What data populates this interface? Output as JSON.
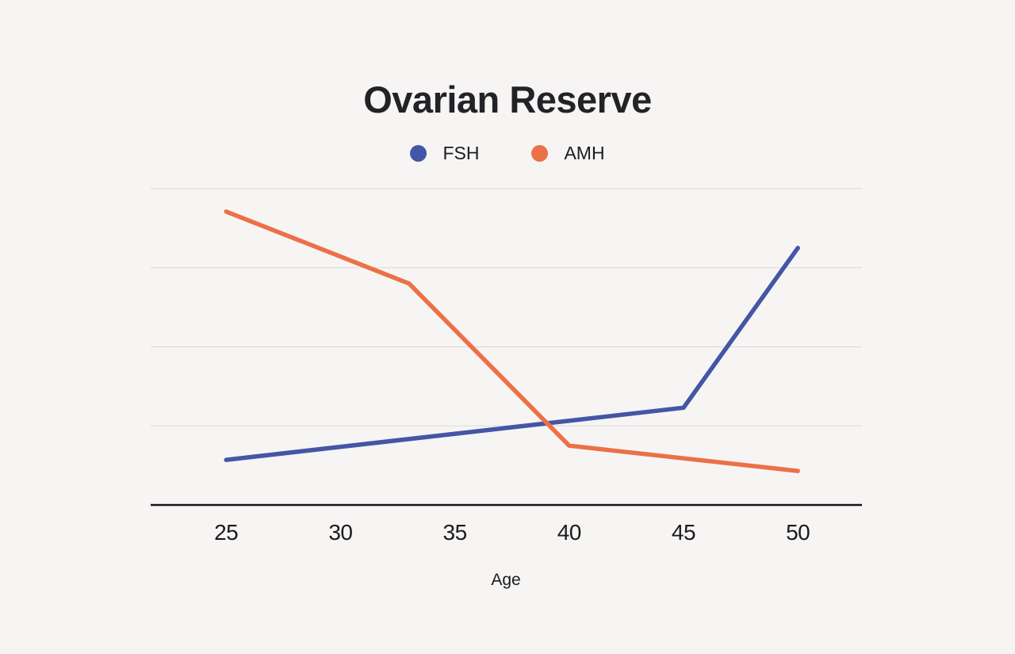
{
  "page": {
    "background": "#f6f5f4"
  },
  "chart_data": {
    "type": "line",
    "title": "Ovarian Reserve",
    "xlabel": "Age",
    "ylabel": "",
    "x_ticks": [
      25,
      30,
      35,
      40,
      45,
      50
    ],
    "xlim": [
      21.7,
      52.8
    ],
    "ylim": [
      0,
      4.13
    ],
    "y_gridlines": [
      1,
      2,
      3,
      4
    ],
    "y_axis_labels_visible": false,
    "grid": "horizontal-only",
    "legend_position": "top-center",
    "series": [
      {
        "name": "FSH",
        "color": "#4456A5",
        "points": [
          [
            25,
            0.57
          ],
          [
            45,
            1.23
          ],
          [
            50,
            3.25
          ]
        ]
      },
      {
        "name": "AMH",
        "color": "#ED7046",
        "points": [
          [
            25,
            3.71
          ],
          [
            33,
            2.8
          ],
          [
            40,
            0.75
          ],
          [
            50,
            0.43
          ]
        ]
      }
    ],
    "colors": {
      "gridline": "#dbdad9",
      "axis": "#151517",
      "tick_text": "#1b1b1d",
      "title_text": "#232227",
      "legend_text": "#1c1c1e"
    }
  }
}
